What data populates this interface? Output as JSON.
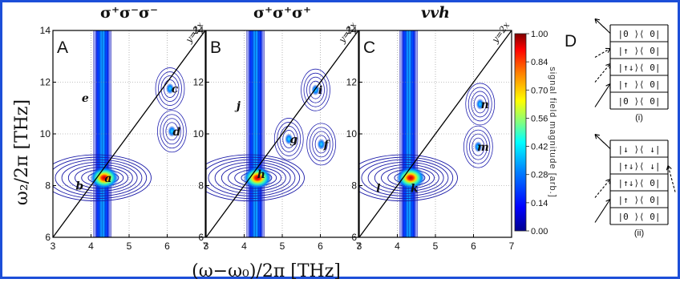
{
  "chart_data": {
    "type": "heatmap",
    "panels": [
      {
        "label": "A",
        "title": "σ⁺σ⁻σ⁻",
        "title_style": "normal",
        "peaks": [
          {
            "name": "a",
            "x": 4.45,
            "y": 8.3
          },
          {
            "name": "b",
            "x": 3.7,
            "y": 8.0
          },
          {
            "name": "c",
            "x": 6.2,
            "y": 11.75
          },
          {
            "name": "d",
            "x": 6.25,
            "y": 10.1
          },
          {
            "name": "e",
            "x": 3.85,
            "y": 11.4
          }
        ]
      },
      {
        "label": "B",
        "title": "σ⁺σ⁺σ⁺",
        "title_style": "normal",
        "peaks": [
          {
            "name": "f",
            "x": 6.15,
            "y": 9.6
          },
          {
            "name": "g",
            "x": 5.3,
            "y": 9.8
          },
          {
            "name": "h",
            "x": 4.45,
            "y": 8.45
          },
          {
            "name": "i",
            "x": 6.0,
            "y": 11.7
          },
          {
            "name": "j",
            "x": 3.85,
            "y": 11.1
          }
        ]
      },
      {
        "label": "C",
        "title": "vvh",
        "title_style": "italic",
        "peaks": [
          {
            "name": "k",
            "x": 4.45,
            "y": 7.9
          },
          {
            "name": "l",
            "x": 3.5,
            "y": 7.9
          },
          {
            "name": "m",
            "x": 6.25,
            "y": 9.5
          },
          {
            "name": "n",
            "x": 6.3,
            "y": 11.15
          }
        ]
      }
    ],
    "xlim": [
      3,
      7
    ],
    "ylim": [
      6,
      14
    ],
    "x_ticks": [
      3,
      4,
      5,
      6,
      7
    ],
    "y_ticks": [
      6,
      8,
      10,
      12,
      14
    ],
    "xlabel": "(ω−ω₀)/2π [THz]",
    "ylabel": "ω₂/2π [THz]",
    "diagonal_label": "y=2x",
    "grid": true,
    "colorbar": {
      "label": "signal field magnitude [arb.]",
      "ticks": [
        "1.00",
        "0.84",
        "0.70",
        "0.56",
        "0.42",
        "0.28",
        "0.14",
        "0.00"
      ],
      "colors": [
        "#00008f",
        "#0000ff",
        "#0080ff",
        "#00ffff",
        "#80ff80",
        "#ffff00",
        "#ff8000",
        "#ff0000",
        "#800000"
      ]
    }
  },
  "diagram": {
    "label": "D",
    "ladders": [
      {
        "caption": "(i)",
        "levels": [
          "|0 ⟩⟨ 0|",
          "|↑ ⟩⟨ 0|",
          "|↑↓⟩⟨ 0|",
          "|↑ ⟩⟨ 0|",
          "|0 ⟩⟨ 0|"
        ]
      },
      {
        "caption": "(ii)",
        "levels": [
          "|↓ ⟩⟨ ↓|",
          "|↑↓⟩⟨ ↓|",
          "|↑↓⟩⟨ 0|",
          "|↑ ⟩⟨ 0|",
          "|0 ⟩⟨ 0|"
        ]
      }
    ]
  },
  "frame_color": "#1c4ed8"
}
